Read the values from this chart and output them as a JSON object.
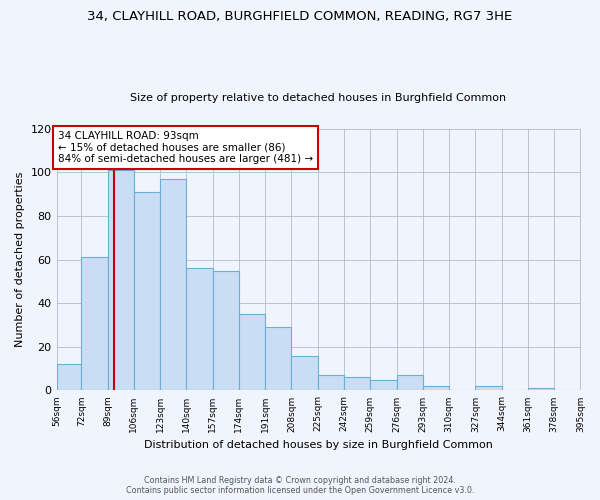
{
  "title1": "34, CLAYHILL ROAD, BURGHFIELD COMMON, READING, RG7 3HE",
  "title2": "Size of property relative to detached houses in Burghfield Common",
  "xlabel": "Distribution of detached houses by size in Burghfield Common",
  "ylabel": "Number of detached properties",
  "bar_edges": [
    56,
    72,
    89,
    106,
    123,
    140,
    157,
    174,
    191,
    208,
    225,
    242,
    259,
    276,
    293,
    310,
    327,
    344,
    361,
    378,
    395
  ],
  "bar_heights": [
    12,
    61,
    101,
    91,
    97,
    56,
    55,
    35,
    29,
    16,
    7,
    6,
    5,
    7,
    2,
    0,
    2,
    0,
    1,
    0
  ],
  "tick_labels": [
    "56sqm",
    "72sqm",
    "89sqm",
    "106sqm",
    "123sqm",
    "140sqm",
    "157sqm",
    "174sqm",
    "191sqm",
    "208sqm",
    "225sqm",
    "242sqm",
    "259sqm",
    "276sqm",
    "293sqm",
    "310sqm",
    "327sqm",
    "344sqm",
    "361sqm",
    "378sqm",
    "395sqm"
  ],
  "bar_color": "#c9ddf5",
  "bar_edge_color": "#6baed6",
  "property_line_x": 93,
  "property_line_color": "#cc0000",
  "ylim": [
    0,
    120
  ],
  "annotation_text_line1": "34 CLAYHILL ROAD: 93sqm",
  "annotation_text_line2": "← 15% of detached houses are smaller (86)",
  "annotation_text_line3": "84% of semi-detached houses are larger (481) →",
  "footer1": "Contains HM Land Registry data © Crown copyright and database right 2024.",
  "footer2": "Contains public sector information licensed under the Open Government Licence v3.0.",
  "background_color": "#f0f4fc",
  "plot_bg_color": "#f0f4fc"
}
